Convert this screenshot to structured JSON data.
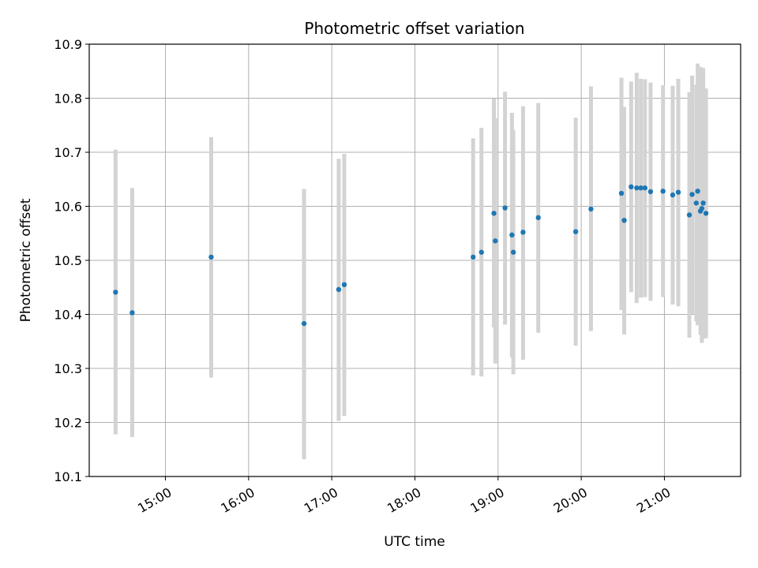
{
  "chart_data": {
    "type": "scatter",
    "title": "Photometric offset variation",
    "xlabel": "UTC time",
    "ylabel": "Photometric offset",
    "x_axis_type": "time",
    "xlim": [
      "14:05",
      "21:55"
    ],
    "ylim": [
      10.1,
      10.9
    ],
    "x_ticks": [
      "15:00",
      "16:00",
      "17:00",
      "18:00",
      "19:00",
      "20:00",
      "21:00"
    ],
    "y_ticks": [
      "10.1",
      "10.2",
      "10.3",
      "10.4",
      "10.5",
      "10.6",
      "10.7",
      "10.8",
      "10.9"
    ],
    "grid": true,
    "legend": false,
    "colors": {
      "point": "#1f77b4",
      "error_bar": "#d3d3d3",
      "grid": "#b0b0b0"
    },
    "series": [
      {
        "points": [
          {
            "x": "14:24",
            "y": 10.441,
            "low": 10.178,
            "high": 10.705
          },
          {
            "x": "14:36",
            "y": 10.403,
            "low": 10.173,
            "high": 10.634
          },
          {
            "x": "15:33",
            "y": 10.506,
            "low": 10.283,
            "high": 10.728
          },
          {
            "x": "16:40",
            "y": 10.383,
            "low": 10.132,
            "high": 10.632
          },
          {
            "x": "17:05",
            "y": 10.446,
            "low": 10.203,
            "high": 10.688
          },
          {
            "x": "17:09",
            "y": 10.455,
            "low": 10.212,
            "high": 10.697
          },
          {
            "x": "18:42",
            "y": 10.506,
            "low": 10.287,
            "high": 10.726
          },
          {
            "x": "18:48",
            "y": 10.515,
            "low": 10.285,
            "high": 10.745
          },
          {
            "x": "18:57",
            "y": 10.587,
            "low": 10.376,
            "high": 10.799
          },
          {
            "x": "18:58",
            "y": 10.536,
            "low": 10.309,
            "high": 10.763
          },
          {
            "x": "19:05",
            "y": 10.597,
            "low": 10.381,
            "high": 10.812
          },
          {
            "x": "19:10",
            "y": 10.547,
            "low": 10.32,
            "high": 10.773
          },
          {
            "x": "19:11",
            "y": 10.515,
            "low": 10.289,
            "high": 10.741
          },
          {
            "x": "19:18",
            "y": 10.552,
            "low": 10.316,
            "high": 10.785
          },
          {
            "x": "19:29",
            "y": 10.579,
            "low": 10.366,
            "high": 10.791
          },
          {
            "x": "19:56",
            "y": 10.553,
            "low": 10.342,
            "high": 10.764
          },
          {
            "x": "20:07",
            "y": 10.595,
            "low": 10.369,
            "high": 10.822
          },
          {
            "x": "20:29",
            "y": 10.624,
            "low": 10.408,
            "high": 10.838
          },
          {
            "x": "20:31",
            "y": 10.574,
            "low": 10.363,
            "high": 10.784
          },
          {
            "x": "20:36",
            "y": 10.636,
            "low": 10.441,
            "high": 10.831
          },
          {
            "x": "20:40",
            "y": 10.634,
            "low": 10.421,
            "high": 10.847
          },
          {
            "x": "20:43",
            "y": 10.634,
            "low": 10.431,
            "high": 10.836
          },
          {
            "x": "20:46",
            "y": 10.634,
            "low": 10.432,
            "high": 10.835
          },
          {
            "x": "20:50",
            "y": 10.627,
            "low": 10.425,
            "high": 10.829
          },
          {
            "x": "20:59",
            "y": 10.628,
            "low": 10.432,
            "high": 10.824
          },
          {
            "x": "21:06",
            "y": 10.621,
            "low": 10.418,
            "high": 10.823
          },
          {
            "x": "21:10",
            "y": 10.626,
            "low": 10.415,
            "high": 10.836
          },
          {
            "x": "21:18",
            "y": 10.584,
            "low": 10.357,
            "high": 10.811
          },
          {
            "x": "21:20",
            "y": 10.622,
            "low": 10.401,
            "high": 10.842
          },
          {
            "x": "21:23",
            "y": 10.606,
            "low": 10.387,
            "high": 10.825
          },
          {
            "x": "21:24",
            "y": 10.628,
            "low": 10.38,
            "high": 10.864
          },
          {
            "x": "21:26",
            "y": 10.591,
            "low": 10.362,
            "high": 10.858
          },
          {
            "x": "21:27",
            "y": 10.596,
            "low": 10.347,
            "high": 10.845
          },
          {
            "x": "21:28",
            "y": 10.606,
            "low": 10.355,
            "high": 10.856
          },
          {
            "x": "21:30",
            "y": 10.587,
            "low": 10.356,
            "high": 10.818
          }
        ]
      }
    ]
  }
}
